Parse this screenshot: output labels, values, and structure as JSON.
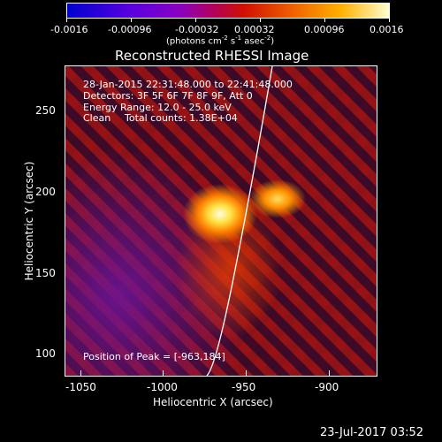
{
  "colorbar": {
    "ticks": [
      "-0.0016",
      "-0.00096",
      "-0.00032",
      "0.00032",
      "0.00096",
      "0.0016"
    ],
    "unit_text": "(photons cm",
    "unit_sup1": "-2",
    "unit_s": " s",
    "unit_sup2": "-1",
    "unit_asec": " asec",
    "unit_sup3": "-2",
    "unit_close": ")"
  },
  "plot": {
    "title": "Reconstructed RHESSI Image",
    "time_range": "28-Jan-2015 22:31:48.000 to 22:41:48.000",
    "detectors": "Detectors: 3F 5F 6F 7F 8F 9F, Att 0",
    "energy_range": "Energy Range: 12.0 - 25.0 keV",
    "clean_label": "Clean",
    "total_counts": "Total counts: 1.38E+04",
    "peak_position": "Position of Peak = [-963,184]",
    "xlabel": "Heliocentric X (arcsec)",
    "ylabel": "Heliocentric Y (arcsec)",
    "x_ticks": [
      "-1050",
      "-1000",
      "-950",
      "-900"
    ],
    "y_ticks": [
      "100",
      "150",
      "200",
      "250"
    ]
  },
  "footer": {
    "timestamp": "23-Jul-2017 03:52"
  },
  "colors": {
    "background": "#000000",
    "axes": "#ffffff",
    "limb": "#ffffff"
  }
}
